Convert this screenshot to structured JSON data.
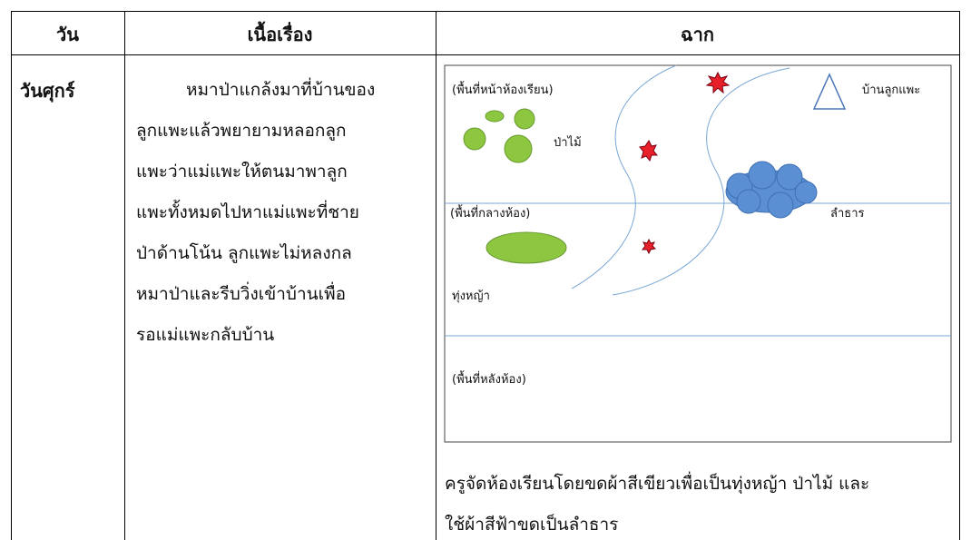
{
  "table": {
    "header": [
      "วัน",
      "เนื้อเรื่อง",
      "ฉาก"
    ],
    "row": {
      "day": "วันศุกร์",
      "story_lines": [
        "หมาป่าแกล้งมาที่บ้านของ",
        "ลูกแพะแล้วพยายามหลอกลูก",
        "แพะว่าแม่แพะให้ตนมาพาลูก",
        "แพะทั้งหมดไปหาแม่แพะที่ชาย",
        "ป่าด้านโน้น ลูกแพะไม่หลงกล",
        "หมาป่าและรีบวิ่งเข้าบ้านเพื่อ",
        "รอแม่แพะกลับบ้าน"
      ],
      "scene": {
        "labels": {
          "front": "(พื้นที่หน้าห้องเรียน)",
          "house": "บ้านลูกแพะ",
          "forest": "ป่าไม้",
          "middle": "(พื้นที่กลางห้อง)",
          "stream": "ลำธาร",
          "meadow": "ทุ่งหญ้า",
          "back": "(พื้นที่หลังห้อง)"
        },
        "caption_lines": [
          "ครูจัดห้องเรียนโดยขดผ้าสีเขียวเพื่อเป็นทุ่งหญ้า ป่าไม้ และ",
          "ใช้ผ้าสีฟ้าขดเป็นลำธาร"
        ]
      }
    }
  }
}
